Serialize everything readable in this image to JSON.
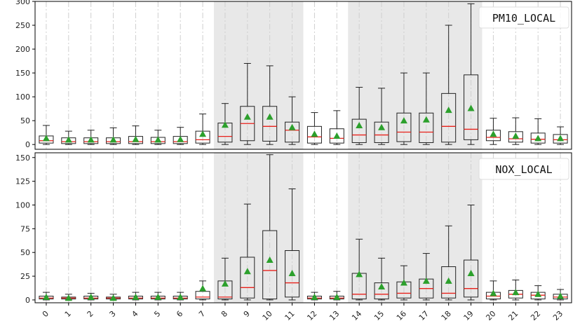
{
  "chart_data": [
    {
      "type": "box",
      "legend": "PM10_LOCAL",
      "legend_position": "top-right",
      "categories": [
        "0",
        "1",
        "2",
        "3",
        "4",
        "5",
        "6",
        "7",
        "8",
        "9",
        "10",
        "11",
        "12",
        "13",
        "14",
        "15",
        "16",
        "17",
        "18",
        "19",
        "20",
        "21",
        "22",
        "23"
      ],
      "ylim": [
        0,
        300
      ],
      "yticks": [
        0,
        50,
        100,
        150,
        200,
        250,
        300
      ],
      "shaded_ranges": [
        [
          8,
          11
        ],
        [
          14,
          19
        ]
      ],
      "boxes": [
        {
          "low": 0,
          "q1": 3,
          "median": 8,
          "q3": 18,
          "high": 40,
          "mean": 13
        },
        {
          "low": 0,
          "q1": 2,
          "median": 6,
          "q3": 14,
          "high": 28,
          "mean": 10
        },
        {
          "low": 0,
          "q1": 2,
          "median": 6,
          "q3": 14,
          "high": 30,
          "mean": 10
        },
        {
          "low": 0,
          "q1": 2,
          "median": 6,
          "q3": 14,
          "high": 35,
          "mean": 10
        },
        {
          "low": 0,
          "q1": 2,
          "median": 6,
          "q3": 17,
          "high": 39,
          "mean": 11
        },
        {
          "low": 0,
          "q1": 2,
          "median": 6,
          "q3": 15,
          "high": 30,
          "mean": 10
        },
        {
          "low": 0,
          "q1": 2,
          "median": 6,
          "q3": 17,
          "high": 36,
          "mean": 11
        },
        {
          "low": 0,
          "q1": 3,
          "median": 10,
          "q3": 28,
          "high": 64,
          "mean": 22
        },
        {
          "low": 0,
          "q1": 5,
          "median": 17,
          "q3": 45,
          "high": 86,
          "mean": 41
        },
        {
          "low": 0,
          "q1": 8,
          "median": 44,
          "q3": 80,
          "high": 170,
          "mean": 58
        },
        {
          "low": 0,
          "q1": 7,
          "median": 38,
          "q3": 80,
          "high": 165,
          "mean": 58
        },
        {
          "low": 0,
          "q1": 5,
          "median": 30,
          "q3": 47,
          "high": 100,
          "mean": 36
        },
        {
          "low": 0,
          "q1": 3,
          "median": 16,
          "q3": 38,
          "high": 67,
          "mean": 22
        },
        {
          "low": 0,
          "q1": 3,
          "median": 13,
          "q3": 33,
          "high": 71,
          "mean": 18
        },
        {
          "low": 0,
          "q1": 4,
          "median": 20,
          "q3": 53,
          "high": 120,
          "mean": 40
        },
        {
          "low": 0,
          "q1": 4,
          "median": 20,
          "q3": 47,
          "high": 118,
          "mean": 36
        },
        {
          "low": 0,
          "q1": 6,
          "median": 26,
          "q3": 66,
          "high": 150,
          "mean": 50
        },
        {
          "low": 0,
          "q1": 4,
          "median": 26,
          "q3": 66,
          "high": 150,
          "mean": 52
        },
        {
          "low": 0,
          "q1": 5,
          "median": 38,
          "q3": 107,
          "high": 250,
          "mean": 72
        },
        {
          "low": 0,
          "q1": 10,
          "median": 32,
          "q3": 146,
          "high": 295,
          "mean": 76
        },
        {
          "low": 0,
          "q1": 8,
          "median": 15,
          "q3": 30,
          "high": 55,
          "mean": 22
        },
        {
          "low": 0,
          "q1": 5,
          "median": 12,
          "q3": 27,
          "high": 56,
          "mean": 18
        },
        {
          "low": 0,
          "q1": 3,
          "median": 11,
          "q3": 24,
          "high": 54,
          "mean": 13
        },
        {
          "low": 0,
          "q1": 3,
          "median": 10,
          "q3": 21,
          "high": 37,
          "mean": 13
        }
      ]
    },
    {
      "type": "box",
      "legend": "NOX_LOCAL",
      "legend_position": "top-right",
      "categories": [
        "0",
        "1",
        "2",
        "3",
        "4",
        "5",
        "6",
        "7",
        "8",
        "9",
        "10",
        "11",
        "12",
        "13",
        "14",
        "15",
        "16",
        "17",
        "18",
        "19",
        "20",
        "21",
        "22",
        "23"
      ],
      "ylim": [
        -3,
        155
      ],
      "yticks": [
        0,
        25,
        50,
        75,
        100,
        125,
        150
      ],
      "shaded_ranges": [
        [
          8,
          11
        ],
        [
          14,
          19
        ]
      ],
      "boxes": [
        {
          "low": 0,
          "q1": 1,
          "median": 2,
          "q3": 4,
          "high": 8,
          "mean": 3
        },
        {
          "low": 0,
          "q1": 1,
          "median": 2,
          "q3": 3,
          "high": 6,
          "mean": 2
        },
        {
          "low": 0,
          "q1": 1,
          "median": 2,
          "q3": 4,
          "high": 7,
          "mean": 3
        },
        {
          "low": 0,
          "q1": 1,
          "median": 2,
          "q3": 3,
          "high": 6,
          "mean": 2
        },
        {
          "low": 0,
          "q1": 1,
          "median": 2,
          "q3": 4,
          "high": 8,
          "mean": 3
        },
        {
          "low": 0,
          "q1": 1,
          "median": 2,
          "q3": 4,
          "high": 8,
          "mean": 3
        },
        {
          "low": 0,
          "q1": 1,
          "median": 2,
          "q3": 4,
          "high": 8,
          "mean": 3
        },
        {
          "low": 0,
          "q1": 1,
          "median": 3,
          "q3": 9,
          "high": 20,
          "mean": 12
        },
        {
          "low": 0,
          "q1": 1,
          "median": 3,
          "q3": 20,
          "high": 44,
          "mean": 17
        },
        {
          "low": 0,
          "q1": 2,
          "median": 13,
          "q3": 45,
          "high": 101,
          "mean": 30
        },
        {
          "low": 0,
          "q1": 1,
          "median": 31,
          "q3": 73,
          "high": 153,
          "mean": 42
        },
        {
          "low": 0,
          "q1": 3,
          "median": 18,
          "q3": 52,
          "high": 117,
          "mean": 28
        },
        {
          "low": 0,
          "q1": 1,
          "median": 2,
          "q3": 4,
          "high": 8,
          "mean": 3
        },
        {
          "low": 0,
          "q1": 1,
          "median": 2,
          "q3": 4,
          "high": 9,
          "mean": 3
        },
        {
          "low": 0,
          "q1": 1,
          "median": 6,
          "q3": 28,
          "high": 64,
          "mean": 27
        },
        {
          "low": 0,
          "q1": 1,
          "median": 6,
          "q3": 18,
          "high": 44,
          "mean": 14
        },
        {
          "low": 0,
          "q1": 2,
          "median": 7,
          "q3": 19,
          "high": 36,
          "mean": 18
        },
        {
          "low": 0,
          "q1": 2,
          "median": 12,
          "q3": 22,
          "high": 49,
          "mean": 20
        },
        {
          "low": 0,
          "q1": 2,
          "median": 7,
          "q3": 35,
          "high": 78,
          "mean": 20
        },
        {
          "low": 0,
          "q1": 3,
          "median": 12,
          "q3": 42,
          "high": 100,
          "mean": 28
        },
        {
          "low": 0,
          "q1": 1,
          "median": 4,
          "q3": 8,
          "high": 20,
          "mean": 7
        },
        {
          "low": 0,
          "q1": 2,
          "median": 6,
          "q3": 10,
          "high": 21,
          "mean": 8
        },
        {
          "low": 0,
          "q1": 1,
          "median": 5,
          "q3": 8,
          "high": 15,
          "mean": 6
        },
        {
          "low": 0,
          "q1": 1,
          "median": 3,
          "q3": 6,
          "high": 11,
          "mean": 4
        }
      ]
    }
  ],
  "colors": {
    "box": "#222222",
    "median": "#e8201a",
    "mean": "#2ca02c",
    "shade": "#e8e8e8",
    "grid": "#cfcfcf"
  }
}
